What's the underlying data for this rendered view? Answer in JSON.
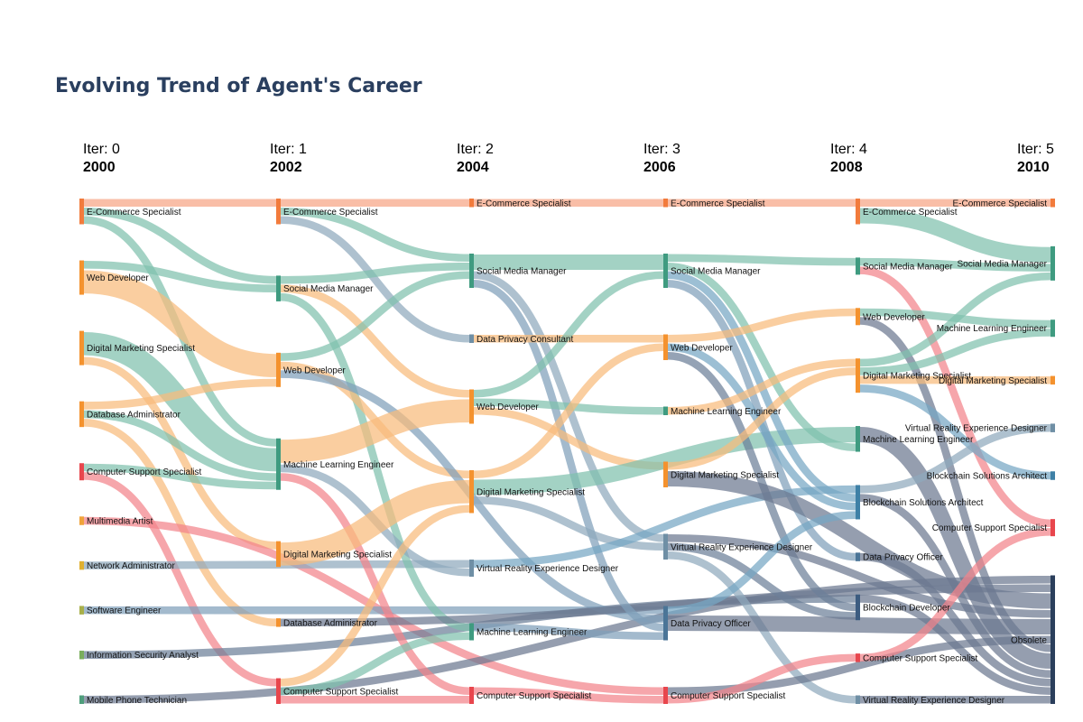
{
  "title": "Evolving Trend of Agent's Career",
  "colors": {
    "E-Commerce Specialist": "#f27b3c",
    "Web Developer": "#f4922e",
    "Digital Marketing Specialist": "#f4922e",
    "Database Administrator": "#f4922e",
    "Computer Support Specialist": "#e8464d",
    "Multimedia Artist": "#f0a33a",
    "Network Administrator": "#e0b030",
    "Software Engineer": "#a8b04a",
    "Information Security Analyst": "#7aae5c",
    "Mobile Phone Technician": "#4f9e7c",
    "Social Media Manager": "#3f9b80",
    "Machine Learning Engineer": "#3f9b80",
    "Data Privacy Consultant": "#6f8fa5",
    "Virtual Reality Experience Designer": "#6f8fa5",
    "Data Privacy Officer": "#4b7597",
    "Blockchain Solutions Architect": "#3e80a6",
    "Blockchain Developer": "#3c5c80",
    "Obsolete": "#2b3f5c",
    "link_light": {
      "E-Commerce Specialist": "#f7a585",
      "Web Developer": "#f8bb7c",
      "Digital Marketing Specialist": "#f8bb7c",
      "Database Administrator": "#f8bb7c",
      "Computer Support Specialist": "#f2848a",
      "Social Media Manager": "#7fc0ad",
      "Machine Learning Engineer": "#7fc0ad",
      "Data Privacy Consultant": "#8fa9bc",
      "Virtual Reality Experience Designer": "#8fa9bc",
      "Data Privacy Officer": "#7f9fba",
      "Blockchain Solutions Architect": "#76a6c4",
      "Blockchain Developer": "#6c7f99",
      "Obsolete": "#6c7890",
      "default": "#6c7890"
    }
  },
  "chart_data": {
    "type": "sankey",
    "title": "Evolving Trend of Agent's Career",
    "columns": [
      {
        "iter": "Iter: 0",
        "year": "2000"
      },
      {
        "iter": "Iter: 1",
        "year": "2002"
      },
      {
        "iter": "Iter: 2",
        "year": "2004"
      },
      {
        "iter": "Iter: 3",
        "year": "2006"
      },
      {
        "iter": "Iter: 4",
        "year": "2008"
      },
      {
        "iter": "Iter: 5",
        "year": "2010"
      }
    ],
    "nodes": [
      {
        "id": "a0",
        "col": 0,
        "label": "E-Commerce Specialist"
      },
      {
        "id": "b0",
        "col": 0,
        "label": "Web Developer"
      },
      {
        "id": "c0",
        "col": 0,
        "label": "Digital Marketing Specialist"
      },
      {
        "id": "d0",
        "col": 0,
        "label": "Database Administrator"
      },
      {
        "id": "e0",
        "col": 0,
        "label": "Computer Support Specialist"
      },
      {
        "id": "f0",
        "col": 0,
        "label": "Multimedia Artist"
      },
      {
        "id": "g0",
        "col": 0,
        "label": "Network Administrator"
      },
      {
        "id": "h0",
        "col": 0,
        "label": "Software Engineer"
      },
      {
        "id": "i0",
        "col": 0,
        "label": "Information Security Analyst"
      },
      {
        "id": "j0",
        "col": 0,
        "label": "Mobile Phone Technician"
      },
      {
        "id": "a1",
        "col": 1,
        "label": "E-Commerce Specialist"
      },
      {
        "id": "b1",
        "col": 1,
        "label": "Social Media Manager"
      },
      {
        "id": "c1",
        "col": 1,
        "label": "Web Developer"
      },
      {
        "id": "d1",
        "col": 1,
        "label": "Machine Learning Engineer"
      },
      {
        "id": "e1",
        "col": 1,
        "label": "Digital Marketing Specialist"
      },
      {
        "id": "f1",
        "col": 1,
        "label": "Database Administrator"
      },
      {
        "id": "g1",
        "col": 1,
        "label": "Computer Support Specialist"
      },
      {
        "id": "a2",
        "col": 2,
        "label": "E-Commerce Specialist"
      },
      {
        "id": "b2",
        "col": 2,
        "label": "Social Media Manager"
      },
      {
        "id": "c2",
        "col": 2,
        "label": "Data Privacy Consultant"
      },
      {
        "id": "d2",
        "col": 2,
        "label": "Web Developer"
      },
      {
        "id": "e2",
        "col": 2,
        "label": "Digital Marketing Specialist"
      },
      {
        "id": "f2",
        "col": 2,
        "label": "Virtual Reality Experience Designer"
      },
      {
        "id": "g2",
        "col": 2,
        "label": "Machine Learning Engineer"
      },
      {
        "id": "h2",
        "col": 2,
        "label": "Computer Support Specialist"
      },
      {
        "id": "a3",
        "col": 3,
        "label": "E-Commerce Specialist"
      },
      {
        "id": "b3",
        "col": 3,
        "label": "Social Media Manager"
      },
      {
        "id": "c3",
        "col": 3,
        "label": "Web Developer"
      },
      {
        "id": "d3",
        "col": 3,
        "label": "Machine Learning Engineer"
      },
      {
        "id": "e3",
        "col": 3,
        "label": "Digital Marketing Specialist"
      },
      {
        "id": "f3",
        "col": 3,
        "label": "Virtual Reality Experience Designer"
      },
      {
        "id": "g3",
        "col": 3,
        "label": "Data Privacy Officer"
      },
      {
        "id": "h3",
        "col": 3,
        "label": "Computer Support Specialist"
      },
      {
        "id": "a4",
        "col": 4,
        "label": "E-Commerce Specialist"
      },
      {
        "id": "b4",
        "col": 4,
        "label": "Social Media Manager"
      },
      {
        "id": "c4",
        "col": 4,
        "label": "Web Developer"
      },
      {
        "id": "d4",
        "col": 4,
        "label": "Digital Marketing Specialist"
      },
      {
        "id": "e4",
        "col": 4,
        "label": "Machine Learning Engineer"
      },
      {
        "id": "f4",
        "col": 4,
        "label": "Blockchain Solutions Architect"
      },
      {
        "id": "g4",
        "col": 4,
        "label": "Data Privacy Officer"
      },
      {
        "id": "h4",
        "col": 4,
        "label": "Blockchain Developer"
      },
      {
        "id": "i4",
        "col": 4,
        "label": "Computer Support Specialist"
      },
      {
        "id": "j4",
        "col": 4,
        "label": "Virtual Reality Experience Designer"
      },
      {
        "id": "a5",
        "col": 5,
        "label": "E-Commerce Specialist"
      },
      {
        "id": "b5",
        "col": 5,
        "label": "Social Media Manager"
      },
      {
        "id": "c5",
        "col": 5,
        "label": "Machine Learning Engineer"
      },
      {
        "id": "d5",
        "col": 5,
        "label": "Digital Marketing Specialist"
      },
      {
        "id": "e5",
        "col": 5,
        "label": "Virtual Reality Experience Designer"
      },
      {
        "id": "f5",
        "col": 5,
        "label": "Blockchain Solutions Architect"
      },
      {
        "id": "g5",
        "col": 5,
        "label": "Computer Support Specialist"
      },
      {
        "id": "h5",
        "col": 5,
        "label": "Obsolete"
      }
    ],
    "links": [
      [
        "a0",
        "a1",
        1
      ],
      [
        "a0",
        "b1",
        1
      ],
      [
        "a0",
        "d1",
        1
      ],
      [
        "b0",
        "b1",
        1
      ],
      [
        "b0",
        "c1",
        3
      ],
      [
        "c0",
        "d1",
        3
      ],
      [
        "c0",
        "e1",
        1
      ],
      [
        "d0",
        "c1",
        1
      ],
      [
        "d0",
        "d1",
        1
      ],
      [
        "d0",
        "f1",
        1
      ],
      [
        "e0",
        "d1",
        1
      ],
      [
        "e0",
        "g1",
        1
      ],
      [
        "f0",
        "h3",
        1
      ],
      [
        "g0",
        "f2",
        1
      ],
      [
        "h0",
        "g3",
        1
      ],
      [
        "i0",
        "h4",
        1
      ],
      [
        "j0",
        "h5",
        1
      ],
      [
        "a1",
        "a2",
        1
      ],
      [
        "a1",
        "b2",
        1
      ],
      [
        "a1",
        "c2",
        1
      ],
      [
        "b1",
        "b2",
        1
      ],
      [
        "b1",
        "g2",
        1
      ],
      [
        "b1",
        "d2",
        1
      ],
      [
        "c1",
        "b2",
        1
      ],
      [
        "c1",
        "e2",
        1
      ],
      [
        "c1",
        "g3",
        1
      ],
      [
        "d1",
        "d2",
        3
      ],
      [
        "d1",
        "f2",
        1
      ],
      [
        "d1",
        "h2",
        1
      ],
      [
        "e1",
        "e2",
        3
      ],
      [
        "f1",
        "h5",
        1
      ],
      [
        "g1",
        "e2",
        1
      ],
      [
        "g1",
        "g2",
        1
      ],
      [
        "g1",
        "h2",
        1
      ],
      [
        "a2",
        "a3",
        1
      ],
      [
        "b2",
        "b3",
        2
      ],
      [
        "b2",
        "f3",
        1
      ],
      [
        "b2",
        "g3",
        1
      ],
      [
        "c2",
        "c3",
        1
      ],
      [
        "d2",
        "b3",
        1
      ],
      [
        "d2",
        "d3",
        1
      ],
      [
        "d2",
        "e3",
        1
      ],
      [
        "e2",
        "c3",
        1
      ],
      [
        "e2",
        "f3",
        1
      ],
      [
        "e2",
        "e4",
        2
      ],
      [
        "f2",
        "f4",
        1
      ],
      [
        "g2",
        "g3",
        1
      ],
      [
        "h2",
        "h3",
        1
      ],
      [
        "a3",
        "a4",
        1
      ],
      [
        "b3",
        "b4",
        1
      ],
      [
        "b3",
        "e4",
        1
      ],
      [
        "b3",
        "f4",
        1
      ],
      [
        "b3",
        "g4",
        1
      ],
      [
        "c3",
        "c4",
        1
      ],
      [
        "c3",
        "f4",
        1
      ],
      [
        "c3",
        "h4",
        1
      ],
      [
        "d3",
        "d4",
        1
      ],
      [
        "e3",
        "d4",
        1
      ],
      [
        "e3",
        "h5",
        2
      ],
      [
        "f3",
        "h4",
        1
      ],
      [
        "f3",
        "j4",
        1
      ],
      [
        "f3",
        "h5",
        1
      ],
      [
        "g3",
        "h5",
        2
      ],
      [
        "g3",
        "f4",
        1
      ],
      [
        "h3",
        "i4",
        1
      ],
      [
        "h3",
        "h5",
        1
      ],
      [
        "a4",
        "a5",
        1
      ],
      [
        "a4",
        "b5",
        2
      ],
      [
        "b4",
        "b5",
        1
      ],
      [
        "b4",
        "g5",
        1
      ],
      [
        "c4",
        "c5",
        1
      ],
      [
        "c4",
        "h5",
        1
      ],
      [
        "d4",
        "b5",
        1
      ],
      [
        "d4",
        "c5",
        1
      ],
      [
        "d4",
        "d5",
        1
      ],
      [
        "d4",
        "f5",
        1
      ],
      [
        "e4",
        "h5",
        2
      ],
      [
        "f4",
        "e5",
        1
      ],
      [
        "f4",
        "h5",
        1
      ],
      [
        "g4",
        "h5",
        1
      ],
      [
        "h4",
        "h5",
        1
      ],
      [
        "i4",
        "g5",
        1
      ],
      [
        "j4",
        "h5",
        1
      ]
    ]
  }
}
